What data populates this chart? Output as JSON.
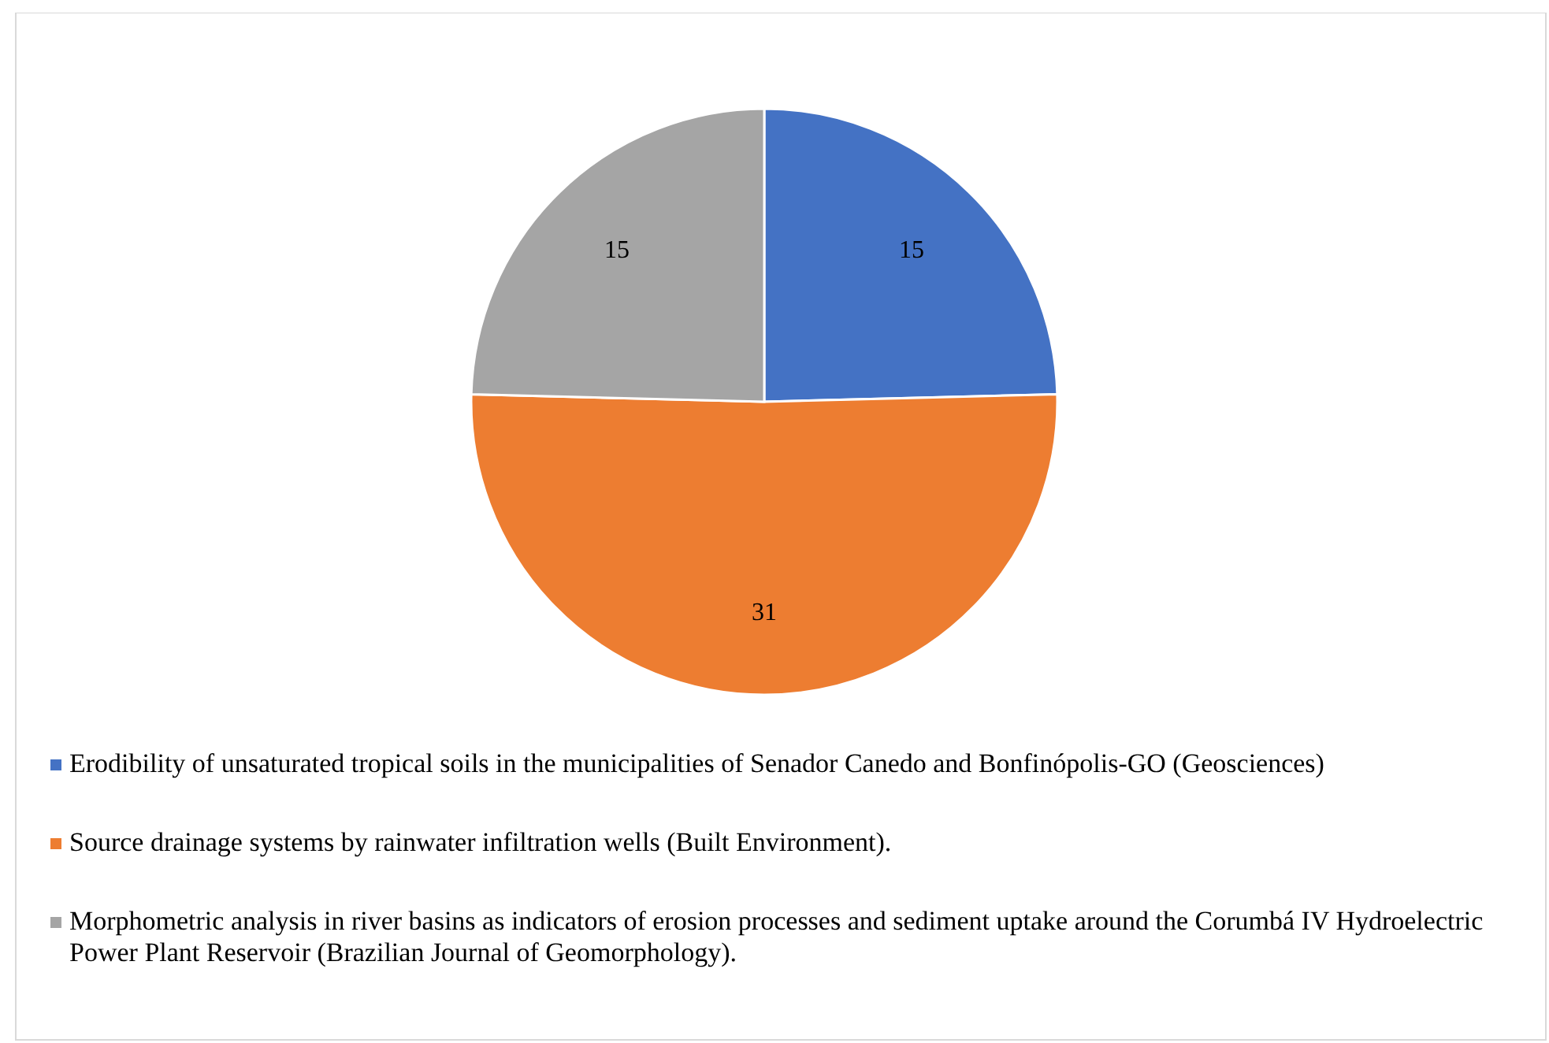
{
  "chart_data": {
    "type": "pie",
    "categories": [
      "Erodibility of unsaturated tropical soils in the municipalities of Senador Canedo and Bonfinópolis-GO (Geosciences)",
      "Source drainage systems by rainwater infiltration wells (Built Environment).",
      "Morphometric analysis in river basins as indicators of erosion processes and sediment uptake around the Corumbá IV Hydroelectric Power Plant Reservoir (Brazilian Journal of Geomorphology)."
    ],
    "values": [
      15,
      31,
      15
    ],
    "colors": [
      "#4472c4",
      "#ed7d31",
      "#a5a5a5"
    ],
    "data_labels": true,
    "legend": "bottom"
  }
}
